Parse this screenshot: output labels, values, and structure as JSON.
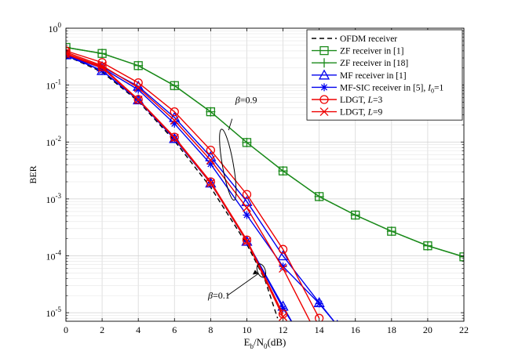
{
  "chart_data": {
    "type": "line",
    "title": "",
    "xlabel": {
      "base": "E",
      "sub1": "b",
      "mid": "/N",
      "sub2": "0",
      "tail": "(dB)"
    },
    "ylabel": "BER",
    "xlim": [
      0,
      22
    ],
    "ylim_log10": [
      -5.15,
      0
    ],
    "grid": true,
    "x_ticks": [
      0,
      2,
      4,
      6,
      8,
      10,
      12,
      14,
      16,
      18,
      20,
      22
    ],
    "y_ticks": [
      {
        "exp": 0,
        "label_base": "10",
        "label_exp": "0"
      },
      {
        "exp": -1,
        "label_base": "10",
        "label_exp": "-1"
      },
      {
        "exp": -2,
        "label_base": "10",
        "label_exp": "-2"
      },
      {
        "exp": -3,
        "label_base": "10",
        "label_exp": "-3"
      },
      {
        "exp": -4,
        "label_base": "10",
        "label_exp": "-4"
      },
      {
        "exp": -5,
        "label_base": "10",
        "label_exp": "-5"
      }
    ],
    "series": [
      {
        "name": "OFDM receiver",
        "legend": {
          "text": "OFDM receiver"
        },
        "color": "#000000",
        "dash": true,
        "marker": "none",
        "x": [
          0,
          2,
          4,
          6,
          8,
          10,
          11,
          11.7
        ],
        "y": [
          0.33,
          0.17,
          0.052,
          0.0105,
          0.0016,
          0.00016,
          3.8e-05,
          8e-06
        ]
      },
      {
        "name": "ZF receiver in [1]",
        "legend": {
          "text": "ZF receiver in [1]"
        },
        "color": "#1a8a1a",
        "dash": false,
        "marker": "square",
        "x": [
          0,
          2,
          4,
          6,
          8,
          10,
          12,
          14,
          16,
          18,
          20,
          22
        ],
        "y": [
          0.46,
          0.36,
          0.22,
          0.098,
          0.034,
          0.0098,
          0.0031,
          0.0011,
          0.00052,
          0.00027,
          0.00015,
          9.6e-05
        ]
      },
      {
        "name": "ZF receiver in [18]",
        "legend": {
          "text": "ZF receiver in [18]"
        },
        "color": "#1a8a1a",
        "dash": false,
        "marker": "plus",
        "x": [
          0,
          2,
          4,
          6,
          8,
          10,
          12,
          14,
          16,
          18,
          20,
          22
        ],
        "y": [
          0.46,
          0.36,
          0.22,
          0.098,
          0.034,
          0.0098,
          0.0031,
          0.0011,
          0.00052,
          0.00027,
          0.00015,
          9.6e-05
        ]
      },
      {
        "name": "MF receiver in [1] (beta=0.9)",
        "legend": {
          "text": "MF receiver in [1]"
        },
        "color": "#0000ee",
        "dash": false,
        "marker": "triangle",
        "x": [
          0,
          2,
          4,
          6,
          8,
          10,
          12,
          14,
          15
        ],
        "y": [
          0.35,
          0.21,
          0.095,
          0.027,
          0.0055,
          0.0009,
          0.0001,
          1.5e-05,
          6e-06
        ]
      },
      {
        "name": "MF receiver in [1] (beta=0.1)",
        "legend": null,
        "color": "#0000ee",
        "dash": false,
        "marker": "triangle",
        "x": [
          0,
          2,
          4,
          6,
          8,
          10,
          12,
          12.6
        ],
        "y": [
          0.34,
          0.18,
          0.055,
          0.0115,
          0.0019,
          0.00018,
          1.3e-05,
          6e-06
        ]
      },
      {
        "name": "MF-SIC receiver in [5], I0=1 (beta=0.9)",
        "legend": {
          "text": "MF-SIC receiver in [5], ",
          "italic": "I",
          "sub": "0",
          "tail": "=1"
        },
        "color": "#0000ee",
        "dash": false,
        "marker": "asterisk",
        "x": [
          0,
          2,
          4,
          6,
          8,
          10,
          12,
          14,
          15
        ],
        "y": [
          0.33,
          0.2,
          0.083,
          0.021,
          0.0041,
          0.00052,
          6.5e-05,
          1.45e-05,
          6e-06
        ]
      },
      {
        "name": "MF-SIC receiver in [5], I0=1 (beta=0.1)",
        "legend": null,
        "color": "#0000ee",
        "dash": false,
        "marker": "asterisk",
        "x": [
          0,
          2,
          4,
          6,
          8,
          10,
          12,
          12.6
        ],
        "y": [
          0.33,
          0.18,
          0.054,
          0.0113,
          0.0019,
          0.00018,
          1.2e-05,
          6e-06
        ]
      },
      {
        "name": "LDGT, L=3 (beta=0.9)",
        "legend": {
          "text": "LDGT, ",
          "italic": "L",
          "tail": "=3"
        },
        "color": "#ee0000",
        "dash": false,
        "marker": "circle",
        "x": [
          0,
          2,
          4,
          6,
          8,
          10,
          12,
          14
        ],
        "y": [
          0.4,
          0.25,
          0.11,
          0.034,
          0.0072,
          0.0012,
          0.00013,
          8e-06
        ]
      },
      {
        "name": "LDGT, L=3 (beta=0.1)",
        "legend": null,
        "color": "#ee0000",
        "dash": false,
        "marker": "circle",
        "x": [
          0,
          2,
          4,
          6,
          8,
          10,
          12
        ],
        "y": [
          0.36,
          0.21,
          0.056,
          0.0122,
          0.002,
          0.00019,
          9.5e-06
        ]
      },
      {
        "name": "LDGT, L=9 (beta=0.9)",
        "legend": {
          "text": "LDGT, ",
          "italic": "L",
          "tail": "=9"
        },
        "color": "#ee0000",
        "dash": false,
        "marker": "x",
        "x": [
          0,
          2,
          4,
          6,
          8,
          10,
          12,
          13.5
        ],
        "y": [
          0.38,
          0.22,
          0.09,
          0.024,
          0.0048,
          0.0007,
          6e-05,
          7e-06
        ]
      },
      {
        "name": "LDGT, L=9 (beta=0.1)",
        "legend": null,
        "color": "#ee0000",
        "dash": false,
        "marker": "x",
        "x": [
          0,
          2,
          4,
          6,
          8,
          10,
          12
        ],
        "y": [
          0.35,
          0.2,
          0.055,
          0.0118,
          0.0019,
          0.00018,
          8.5e-06
        ]
      }
    ],
    "legend_placement": "top-right",
    "annotations": [
      {
        "name": "beta-0.9-annotation",
        "symbol": "β",
        "text": "=0.9",
        "ellipse_at": {
          "x": 8.95,
          "y": 0.004
        },
        "arrow_to": {
          "x": 9.1,
          "y": 0.03
        }
      },
      {
        "name": "beta-0.1-annotation",
        "symbol": "β",
        "text": "=0.1",
        "ellipse_at": {
          "x": 10.8,
          "y": 5.5e-05
        },
        "arrow_to": {
          "x": 10.85,
          "y": 4.5e-05
        }
      }
    ]
  }
}
